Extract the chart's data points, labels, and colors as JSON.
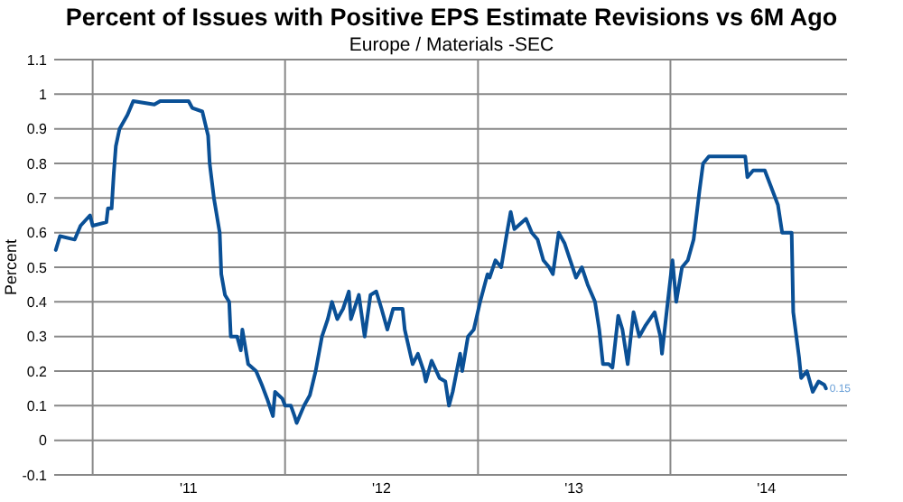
{
  "chart_data": {
    "type": "line",
    "title": "Percent of Issues with Positive EPS Estimate Revisions vs 6M Ago",
    "subtitle": "Europe / Materials -SEC",
    "ylabel": "Percent",
    "xlim": [
      "2010-10-20",
      "2014-12-02"
    ],
    "ylim": [
      -0.1,
      1.1
    ],
    "yticks": [
      -0.1,
      0,
      0.1,
      0.2,
      0.3,
      0.4,
      0.5,
      0.6,
      0.7,
      0.8,
      0.9,
      1,
      1.1
    ],
    "xticks": [
      {
        "value": "2011-01-01",
        "label": null
      },
      {
        "value": "2011-07-02",
        "label": "'11"
      },
      {
        "value": "2012-01-01",
        "label": null
      },
      {
        "value": "2012-07-02",
        "label": "'12"
      },
      {
        "value": "2013-01-01",
        "label": null
      },
      {
        "value": "2013-07-02",
        "label": "'13"
      },
      {
        "value": "2014-01-01",
        "label": null
      },
      {
        "value": "2014-07-02",
        "label": "'14"
      }
    ],
    "grid": true,
    "annotations": [
      {
        "text": "0.15",
        "x": "2014-10-23",
        "y": 0.15
      }
    ],
    "series": [
      {
        "color": "#0a5096",
        "x": [
          "2010-10-23",
          "2010-10-31",
          "2010-11-28",
          "2010-12-09",
          "2010-12-27",
          "2011-01-01",
          "2011-01-27",
          "2011-01-30",
          "2011-02-06",
          "2011-02-10",
          "2011-02-14",
          "2011-02-21",
          "2011-03-08",
          "2011-03-19",
          "2011-04-28",
          "2011-05-09",
          "2011-07-02",
          "2011-07-09",
          "2011-07-28",
          "2011-08-08",
          "2011-08-11",
          "2011-08-19",
          "2011-08-30",
          "2011-09-02",
          "2011-09-09",
          "2011-09-17",
          "2011-09-20",
          "2011-10-02",
          "2011-10-09",
          "2011-10-12",
          "2011-10-23",
          "2011-11-07",
          "2011-11-18",
          "2011-11-28",
          "2011-12-09",
          "2011-12-13",
          "2011-12-27",
          "2012-01-01",
          "2012-01-12",
          "2012-01-19",
          "2012-01-23",
          "2012-02-06",
          "2012-02-17",
          "2012-02-28",
          "2012-03-11",
          "2012-03-22",
          "2012-03-30",
          "2012-04-09",
          "2012-04-20",
          "2012-05-01",
          "2012-05-05",
          "2012-05-20",
          "2012-05-31",
          "2012-06-11",
          "2012-06-22",
          "2012-07-02",
          "2012-07-13",
          "2012-07-24",
          "2012-08-11",
          "2012-08-15",
          "2012-08-30",
          "2012-09-09",
          "2012-09-20",
          "2012-09-24",
          "2012-10-05",
          "2012-10-20",
          "2012-10-31",
          "2012-11-07",
          "2012-11-14",
          "2012-11-28",
          "2012-12-02",
          "2012-12-13",
          "2012-12-24",
          "2013-01-05",
          "2013-01-19",
          "2013-01-23",
          "2013-02-03",
          "2013-02-14",
          "2013-02-25",
          "2013-03-04",
          "2013-03-11",
          "2013-04-02",
          "2013-04-13",
          "2013-04-24",
          "2013-05-05",
          "2013-05-16",
          "2013-05-23",
          "2013-06-03",
          "2013-06-14",
          "2013-06-25",
          "2013-07-06",
          "2013-07-17",
          "2013-07-28",
          "2013-08-11",
          "2013-08-19",
          "2013-08-26",
          "2013-09-06",
          "2013-09-13",
          "2013-09-24",
          "2013-10-02",
          "2013-10-12",
          "2013-10-23",
          "2013-11-03",
          "2013-11-14",
          "2013-12-02",
          "2013-12-13",
          "2013-12-16",
          "2013-12-27",
          "2014-01-05",
          "2014-01-12",
          "2014-01-23",
          "2014-02-03",
          "2014-02-14",
          "2014-02-25",
          "2014-03-04",
          "2014-03-15",
          "2014-04-13",
          "2014-05-23",
          "2014-05-27",
          "2014-06-07",
          "2014-06-29",
          "2014-07-09",
          "2014-07-24",
          "2014-08-01",
          "2014-08-19",
          "2014-08-22",
          "2014-09-02",
          "2014-09-06",
          "2014-09-17",
          "2014-09-28",
          "2014-10-09",
          "2014-10-20",
          "2014-10-23"
        ],
        "values": [
          0.55,
          0.59,
          0.58,
          0.62,
          0.65,
          0.62,
          0.63,
          0.67,
          0.67,
          0.77,
          0.85,
          0.9,
          0.94,
          0.98,
          0.97,
          0.98,
          0.98,
          0.96,
          0.95,
          0.88,
          0.8,
          0.7,
          0.6,
          0.48,
          0.42,
          0.4,
          0.3,
          0.3,
          0.26,
          0.32,
          0.22,
          0.2,
          0.16,
          0.12,
          0.07,
          0.14,
          0.12,
          0.1,
          0.1,
          0.07,
          0.05,
          0.1,
          0.13,
          0.2,
          0.3,
          0.35,
          0.4,
          0.35,
          0.38,
          0.43,
          0.35,
          0.42,
          0.3,
          0.42,
          0.43,
          0.38,
          0.32,
          0.38,
          0.38,
          0.32,
          0.22,
          0.25,
          0.2,
          0.17,
          0.23,
          0.18,
          0.17,
          0.1,
          0.14,
          0.25,
          0.2,
          0.3,
          0.32,
          0.4,
          0.48,
          0.47,
          0.52,
          0.5,
          0.6,
          0.66,
          0.61,
          0.64,
          0.6,
          0.58,
          0.52,
          0.5,
          0.48,
          0.6,
          0.57,
          0.52,
          0.47,
          0.5,
          0.45,
          0.4,
          0.32,
          0.22,
          0.22,
          0.21,
          0.36,
          0.32,
          0.22,
          0.37,
          0.3,
          0.33,
          0.37,
          0.3,
          0.25,
          0.4,
          0.52,
          0.4,
          0.5,
          0.52,
          0.58,
          0.72,
          0.8,
          0.82,
          0.82,
          0.82,
          0.76,
          0.78,
          0.78,
          0.74,
          0.68,
          0.6,
          0.6,
          0.37,
          0.24,
          0.18,
          0.2,
          0.14,
          0.17,
          0.16,
          0.15
        ]
      }
    ]
  }
}
